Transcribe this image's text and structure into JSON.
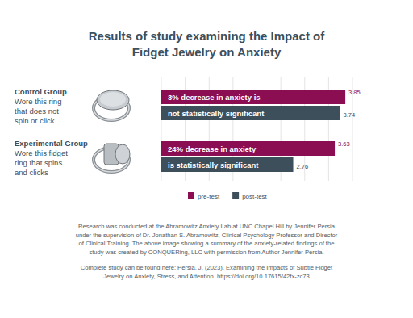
{
  "chart_data": {
    "type": "bar",
    "orientation": "horizontal",
    "title": "Results of study examining the Impact of Fidget Jewelry on Anxiety",
    "categories": [
      "Control Group",
      "Experimental Group"
    ],
    "descriptions": [
      [
        "Wore this ring",
        "that does not",
        "spin or click"
      ],
      [
        "Wore this fidget",
        "ring that spins",
        "and clicks"
      ]
    ],
    "annotations": [
      [
        "3% decrease in anxiety is",
        "not statistically significant"
      ],
      [
        "24% decrease in anxiety",
        "is statistically significant"
      ]
    ],
    "series": [
      {
        "name": "pre-test",
        "color": "#8b0d52",
        "values": [
          3.85,
          3.63
        ]
      },
      {
        "name": "post-test",
        "color": "#3e4f5c",
        "values": [
          3.74,
          2.76
        ]
      }
    ],
    "xlim": [
      0,
      4
    ],
    "xticks": [
      0,
      0.5,
      1,
      1.5,
      2,
      2.5,
      3,
      3.5,
      4
    ],
    "grid": true,
    "data_labels": true,
    "tick_labels": false,
    "notes": [
      [
        "Research was conducted at the Abramowitz Anxiety Lab at UNC Chapel Hill by Jennifer Persia",
        "under the supervision of Dr. Jonathan S. Abramowitz, Clinical Psychology Professor and Director",
        "of Clinical Training. The above image showing a summary of the anxiety-related findings of the",
        "study was created by CONQUERing, LLC with permission from Author Jennifer Persia."
      ],
      [
        "Complete study can be found here: Persia, J. (2023). Examining the Impacts of Subtle Fidget",
        "Jewelry on Anxiety, Stress, and Attention. https://doi.org/10.17615/42fx-zc73"
      ]
    ]
  }
}
